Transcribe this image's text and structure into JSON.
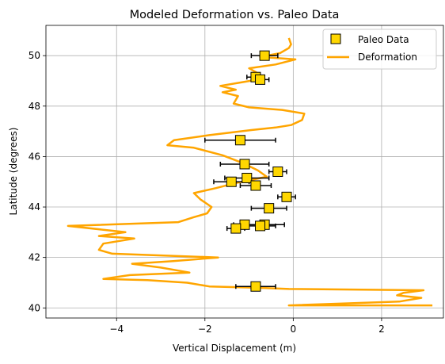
{
  "chart_data": {
    "type": "scatter",
    "title": "Modeled Deformation vs. Paleo Data",
    "xlabel": "Vertical Displacement (m)",
    "ylabel": "Latitude (degrees)",
    "xlim": [
      -5.6,
      3.4
    ],
    "ylim": [
      39.6,
      51.2
    ],
    "xticks": [
      -4,
      -2,
      0,
      2
    ],
    "yticks": [
      40,
      42,
      44,
      46,
      48,
      50
    ],
    "grid": true,
    "legend_position": "top-right",
    "colors": {
      "paleo_face": "#FFD700",
      "paleo_edge": "#000000",
      "deformation": "#FFA500",
      "errorbar": "#000000",
      "grid": "#b0b0b0"
    },
    "series": [
      {
        "name": "Paleo Data",
        "kind": "scatter-errorbar",
        "points": [
          {
            "x": -0.65,
            "y": 50.0,
            "xerr": 0.3
          },
          {
            "x": -0.85,
            "y": 49.15,
            "xerr": 0.2
          },
          {
            "x": -0.75,
            "y": 49.05,
            "xerr": 0.2
          },
          {
            "x": -1.2,
            "y": 46.65,
            "xerr": 0.8
          },
          {
            "x": -1.1,
            "y": 45.7,
            "xerr": 0.55
          },
          {
            "x": -0.35,
            "y": 45.4,
            "xerr": 0.2
          },
          {
            "x": -1.05,
            "y": 45.15,
            "xerr": 0.5
          },
          {
            "x": -1.4,
            "y": 45.0,
            "xerr": 0.4
          },
          {
            "x": -0.85,
            "y": 44.85,
            "xerr": 0.35
          },
          {
            "x": -0.15,
            "y": 44.4,
            "xerr": 0.2
          },
          {
            "x": -0.55,
            "y": 43.95,
            "xerr": 0.4
          },
          {
            "x": -1.1,
            "y": 43.3,
            "xerr": 0.25
          },
          {
            "x": -0.65,
            "y": 43.3,
            "xerr": 0.45
          },
          {
            "x": -0.75,
            "y": 43.25,
            "xerr": 0.35
          },
          {
            "x": -1.3,
            "y": 43.15,
            "xerr": 0.2
          },
          {
            "x": -0.85,
            "y": 40.85,
            "xerr": 0.45
          }
        ]
      },
      {
        "name": "Deformation",
        "kind": "line",
        "points": [
          [
            3.15,
            40.1
          ],
          [
            -0.1,
            40.1
          ],
          [
            2.4,
            40.25
          ],
          [
            2.9,
            40.4
          ],
          [
            2.35,
            40.5
          ],
          [
            2.5,
            40.6
          ],
          [
            2.95,
            40.7
          ],
          [
            -0.1,
            40.75
          ],
          [
            -0.85,
            40.8
          ],
          [
            -1.9,
            40.85
          ],
          [
            -2.4,
            41.0
          ],
          [
            -3.3,
            41.1
          ],
          [
            -4.3,
            41.15
          ],
          [
            -3.7,
            41.3
          ],
          [
            -2.35,
            41.4
          ],
          [
            -3.0,
            41.6
          ],
          [
            -3.65,
            41.75
          ],
          [
            -2.75,
            41.85
          ],
          [
            -1.7,
            42.0
          ],
          [
            -4.1,
            42.15
          ],
          [
            -4.4,
            42.3
          ],
          [
            -4.3,
            42.55
          ],
          [
            -3.6,
            42.75
          ],
          [
            -4.4,
            42.85
          ],
          [
            -3.8,
            43.0
          ],
          [
            -4.3,
            43.1
          ],
          [
            -5.1,
            43.25
          ],
          [
            -2.6,
            43.4
          ],
          [
            -2.25,
            43.6
          ],
          [
            -1.95,
            43.75
          ],
          [
            -1.85,
            44.0
          ],
          [
            -2.1,
            44.3
          ],
          [
            -2.25,
            44.55
          ],
          [
            -1.75,
            44.75
          ],
          [
            -1.3,
            44.95
          ],
          [
            -0.6,
            45.2
          ],
          [
            -0.8,
            45.45
          ],
          [
            -1.15,
            45.75
          ],
          [
            -1.6,
            46.05
          ],
          [
            -2.25,
            46.35
          ],
          [
            -2.85,
            46.45
          ],
          [
            -2.7,
            46.65
          ],
          [
            -1.9,
            46.85
          ],
          [
            -0.95,
            47.05
          ],
          [
            -0.4,
            47.15
          ],
          [
            -0.05,
            47.25
          ],
          [
            0.2,
            47.45
          ],
          [
            0.25,
            47.7
          ],
          [
            -0.25,
            47.85
          ],
          [
            -1.0,
            47.95
          ],
          [
            -1.35,
            48.1
          ],
          [
            -1.25,
            48.4
          ],
          [
            -1.6,
            48.55
          ],
          [
            -1.3,
            48.65
          ],
          [
            -1.65,
            48.8
          ],
          [
            -1.15,
            48.95
          ],
          [
            -0.65,
            49.1
          ],
          [
            -0.8,
            49.3
          ],
          [
            -1.0,
            49.5
          ],
          [
            -0.4,
            49.65
          ],
          [
            0.05,
            49.85
          ],
          [
            -0.75,
            49.95
          ],
          [
            -0.3,
            50.1
          ],
          [
            -0.1,
            50.3
          ],
          [
            -0.05,
            50.45
          ],
          [
            -0.1,
            50.7
          ]
        ]
      }
    ]
  }
}
